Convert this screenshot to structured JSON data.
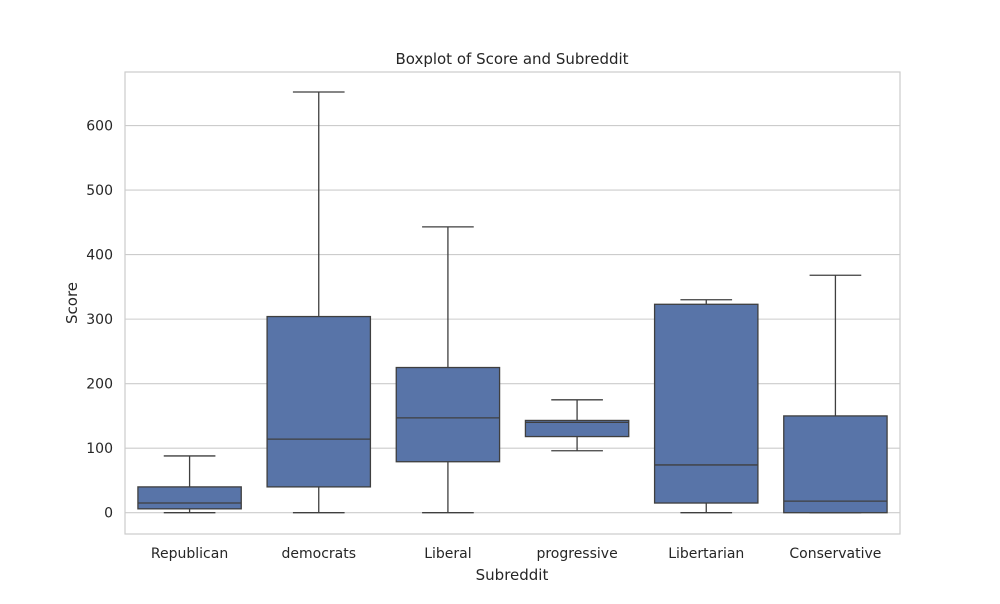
{
  "chart_data": {
    "type": "boxplot",
    "title": "Boxplot of Score and Subreddit",
    "xlabel": "Subreddit",
    "ylabel": "Score",
    "ylim": [
      -33,
      683
    ],
    "yticks": [
      0,
      100,
      200,
      300,
      400,
      500,
      600
    ],
    "grid": "horizontal",
    "legend": "none",
    "categories": [
      "Republican",
      "democrats",
      "Liberal",
      "progressive",
      "Libertarian",
      "Conservative"
    ],
    "boxes": [
      {
        "category": "Republican",
        "whisker_low": 0,
        "q1": 6,
        "median": 15,
        "q3": 40,
        "whisker_high": 88
      },
      {
        "category": "democrats",
        "whisker_low": 0,
        "q1": 40,
        "median": 114,
        "q3": 304,
        "whisker_high": 652
      },
      {
        "category": "Liberal",
        "whisker_low": 0,
        "q1": 79,
        "median": 147,
        "q3": 225,
        "whisker_high": 443
      },
      {
        "category": "progressive",
        "whisker_low": 96,
        "q1": 118,
        "median": 140,
        "q3": 143,
        "whisker_high": 175
      },
      {
        "category": "Libertarian",
        "whisker_low": 0,
        "q1": 15,
        "median": 74,
        "q3": 323,
        "whisker_high": 330
      },
      {
        "category": "Conservative",
        "whisker_low": 0,
        "q1": 0,
        "median": 18,
        "q3": 150,
        "whisker_high": 368
      }
    ],
    "colors": {
      "box_fill": "#5874a8",
      "line": "#3f3f3f",
      "grid": "#cccccc",
      "frame": "#cccccc"
    }
  }
}
